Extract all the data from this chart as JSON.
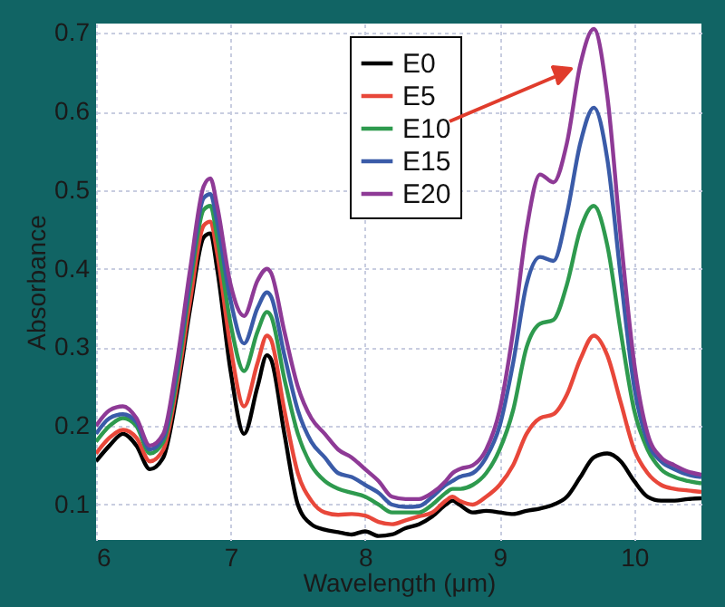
{
  "chart_data": {
    "type": "line",
    "xlabel": "Wavelength (μm)",
    "ylabel": "Absorbance",
    "x": [
      6,
      6.1,
      6.2,
      6.3,
      6.4,
      6.5,
      6.6,
      6.7,
      6.8,
      6.85,
      6.9,
      7.0,
      7.1,
      7.2,
      7.27,
      7.3,
      7.4,
      7.5,
      7.6,
      7.7,
      7.8,
      7.9,
      8.0,
      8.1,
      8.2,
      8.3,
      8.4,
      8.5,
      8.6,
      8.65,
      8.7,
      8.8,
      8.9,
      9.0,
      9.1,
      9.2,
      9.3,
      9.4,
      9.5,
      9.6,
      9.7,
      9.8,
      9.9,
      10.0,
      10.1,
      10.2,
      10.3,
      10.4,
      10.5
    ],
    "series": [
      {
        "name": "E0",
        "color": "#000000",
        "values": [
          0.155,
          0.175,
          0.19,
          0.175,
          0.145,
          0.16,
          0.24,
          0.35,
          0.44,
          0.445,
          0.4,
          0.27,
          0.19,
          0.25,
          0.29,
          0.285,
          0.19,
          0.1,
          0.075,
          0.068,
          0.065,
          0.062,
          0.066,
          0.06,
          0.062,
          0.07,
          0.075,
          0.085,
          0.1,
          0.105,
          0.1,
          0.09,
          0.092,
          0.09,
          0.088,
          0.092,
          0.095,
          0.1,
          0.11,
          0.135,
          0.16,
          0.165,
          0.155,
          0.13,
          0.11,
          0.105,
          0.105,
          0.107,
          0.108
        ]
      },
      {
        "name": "E5",
        "color": "#e8473a",
        "values": [
          0.165,
          0.185,
          0.195,
          0.185,
          0.155,
          0.17,
          0.25,
          0.36,
          0.455,
          0.46,
          0.42,
          0.3,
          0.225,
          0.28,
          0.315,
          0.31,
          0.22,
          0.14,
          0.105,
          0.09,
          0.087,
          0.088,
          0.086,
          0.078,
          0.075,
          0.08,
          0.085,
          0.09,
          0.105,
          0.11,
          0.105,
          0.1,
          0.11,
          0.125,
          0.15,
          0.19,
          0.21,
          0.215,
          0.24,
          0.285,
          0.315,
          0.29,
          0.23,
          0.17,
          0.14,
          0.125,
          0.12,
          0.118,
          0.116
        ]
      },
      {
        "name": "E10",
        "color": "#2e9a4e",
        "values": [
          0.18,
          0.2,
          0.21,
          0.2,
          0.165,
          0.18,
          0.26,
          0.38,
          0.475,
          0.48,
          0.44,
          0.33,
          0.27,
          0.32,
          0.345,
          0.34,
          0.26,
          0.19,
          0.15,
          0.13,
          0.12,
          0.115,
          0.11,
          0.1,
          0.09,
          0.09,
          0.09,
          0.1,
          0.115,
          0.12,
          0.12,
          0.125,
          0.14,
          0.17,
          0.22,
          0.3,
          0.33,
          0.335,
          0.38,
          0.45,
          0.48,
          0.43,
          0.32,
          0.22,
          0.17,
          0.145,
          0.135,
          0.13,
          0.127
        ]
      },
      {
        "name": "E15",
        "color": "#3a5ba8",
        "values": [
          0.19,
          0.21,
          0.215,
          0.205,
          0.17,
          0.185,
          0.27,
          0.39,
          0.49,
          0.495,
          0.46,
          0.36,
          0.305,
          0.35,
          0.37,
          0.365,
          0.29,
          0.22,
          0.18,
          0.16,
          0.14,
          0.135,
          0.125,
          0.115,
          0.1,
          0.097,
          0.098,
          0.11,
          0.125,
          0.13,
          0.135,
          0.14,
          0.16,
          0.2,
          0.28,
          0.38,
          0.415,
          0.41,
          0.47,
          0.56,
          0.605,
          0.54,
          0.39,
          0.25,
          0.18,
          0.155,
          0.145,
          0.138,
          0.135
        ]
      },
      {
        "name": "E20",
        "color": "#8e3a96",
        "values": [
          0.2,
          0.22,
          0.225,
          0.21,
          0.175,
          0.19,
          0.28,
          0.4,
          0.505,
          0.515,
          0.48,
          0.38,
          0.34,
          0.385,
          0.4,
          0.395,
          0.32,
          0.25,
          0.21,
          0.19,
          0.17,
          0.16,
          0.145,
          0.13,
          0.11,
          0.107,
          0.107,
          0.115,
          0.13,
          0.14,
          0.145,
          0.15,
          0.17,
          0.22,
          0.32,
          0.45,
          0.52,
          0.51,
          0.56,
          0.66,
          0.705,
          0.62,
          0.44,
          0.28,
          0.19,
          0.16,
          0.15,
          0.142,
          0.138
        ]
      }
    ],
    "xlim": [
      6,
      10.5
    ],
    "xticks": [
      6,
      7,
      8,
      9,
      10
    ],
    "ylim": [
      0.055,
      0.712
    ],
    "yticks": [
      0.1,
      0.2,
      0.3,
      0.4,
      0.5,
      0.6,
      0.7
    ],
    "grid": true,
    "legend": "top",
    "marker": "none",
    "line_style": "solid"
  }
}
